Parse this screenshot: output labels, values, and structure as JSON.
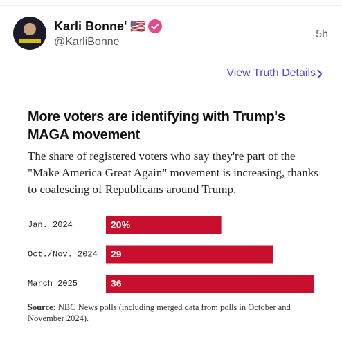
{
  "post": {
    "author": "Karli Bonne' 🇺🇸",
    "handle": "@KarliBonne",
    "time": "5h",
    "link": "View Truth Details"
  },
  "chart_data": {
    "type": "bar",
    "orientation": "horizontal",
    "title": "More voters are identifying with Trump's MAGA movement",
    "subtitle": "The share of registered voters who say they're part of the \"Make America Great Again\" movement is increasing, thanks to coalescing of Republicans around Trump.",
    "categories": [
      "Jan. 2024",
      "Oct./Nov. 2024",
      "March 2025"
    ],
    "values": [
      20,
      29,
      36
    ],
    "value_labels": [
      "20%",
      "29",
      "36"
    ],
    "color": "#c8102e",
    "source_label": "Source:",
    "source": "NBC News polls (including merged data from polls in October and November 2024)."
  }
}
